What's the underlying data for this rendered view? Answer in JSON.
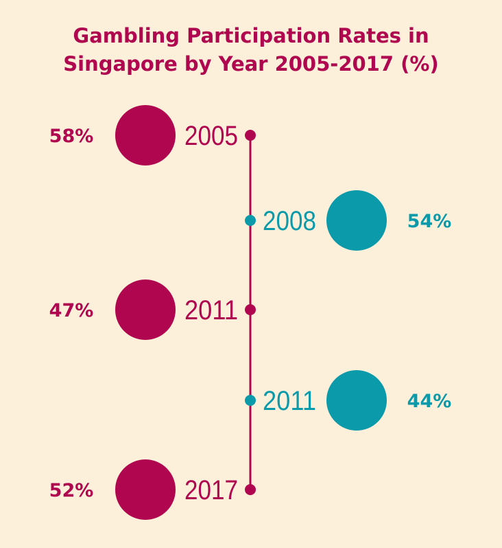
{
  "title": {
    "line1": "Gambling Participation Rates in",
    "line2": "Singapore by Year 2005-2017 (%)"
  },
  "colors": {
    "background": "#fdf0da",
    "primary": "#b0064f",
    "secondary": "#0b9aaa"
  },
  "chart_data": {
    "type": "timeline",
    "title": "Gambling Participation Rates in Singapore by Year 2005-2017 (%)",
    "points": [
      {
        "year": "2005",
        "value": 58,
        "label": "58%",
        "side": "left"
      },
      {
        "year": "2008",
        "value": 54,
        "label": "54%",
        "side": "right"
      },
      {
        "year": "2011",
        "value": 47,
        "label": "47%",
        "side": "left"
      },
      {
        "year": "2011",
        "value": 44,
        "label": "44%",
        "side": "right"
      },
      {
        "year": "2017",
        "value": 52,
        "label": "52%",
        "side": "left"
      }
    ]
  }
}
